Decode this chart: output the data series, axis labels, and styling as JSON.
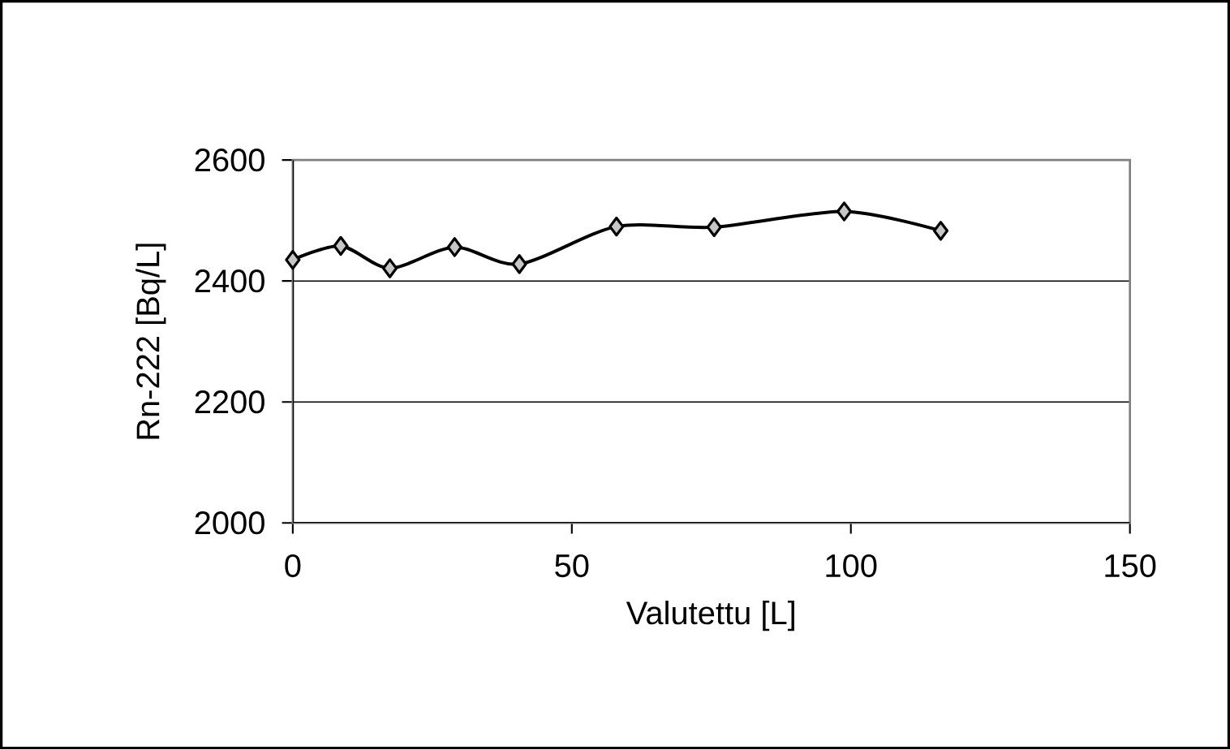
{
  "chart_data": {
    "type": "line",
    "xlabel": "Valutettu [L]",
    "ylabel": "Rn-222 [Bq/L]",
    "x": [
      0,
      8.6,
      17.4,
      29,
      40.6,
      58,
      75.5,
      98.8,
      116.1
    ],
    "series": [
      {
        "color": "#000000",
        "values": [
          2435,
          2458,
          2421,
          2456,
          2428,
          2490,
          2489,
          2515,
          2483
        ]
      }
    ],
    "xlim": [
      0,
      150
    ],
    "xticks": [
      0,
      50,
      100,
      150
    ],
    "ylim": [
      2000,
      2600
    ],
    "yticks": [
      2000,
      2200,
      2400,
      2600
    ],
    "grid": "y",
    "marker": "diamond",
    "line_style": "solid"
  }
}
